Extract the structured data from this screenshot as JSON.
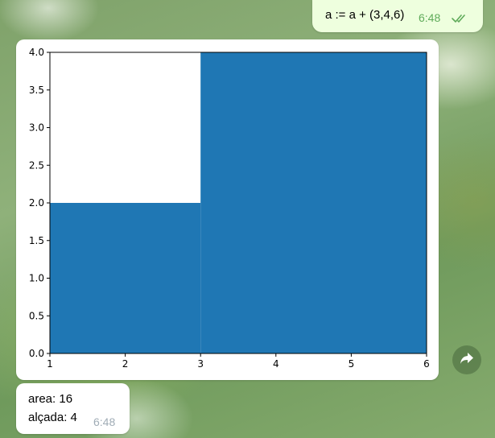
{
  "chat": {
    "outgoing": {
      "text": "a := a + (3,4,6)",
      "time": "6:48",
      "status_icon": "double-check-icon",
      "status_color": "#5fab5a"
    },
    "incoming_text": {
      "line1": "area: 16",
      "line2": "alçada: 4",
      "time": "6:48"
    },
    "forward_icon": "forward-arrow-icon"
  },
  "chart_data": {
    "type": "bar",
    "bars": [
      {
        "left": 1,
        "width": 2,
        "height": 2
      },
      {
        "left": 3,
        "width": 3,
        "height": 4
      }
    ],
    "color": "#1f77b4",
    "xlim": [
      1,
      6
    ],
    "ylim": [
      0,
      4.0
    ],
    "xticks": [
      "1",
      "2",
      "3",
      "4",
      "5",
      "6"
    ],
    "yticks": [
      "0.0",
      "0.5",
      "1.0",
      "1.5",
      "2.0",
      "2.5",
      "3.0",
      "3.5",
      "4.0"
    ],
    "grid": false,
    "title": "",
    "xlabel": "",
    "ylabel": ""
  }
}
